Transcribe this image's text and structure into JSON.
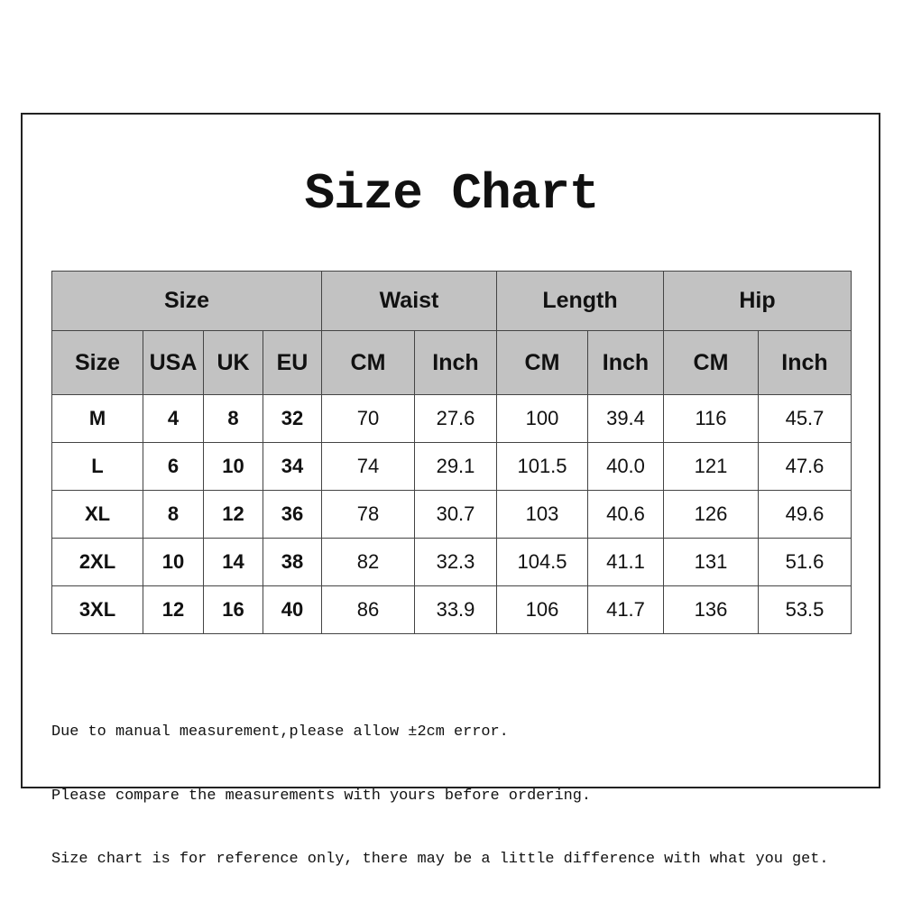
{
  "title": "Size Chart",
  "table": {
    "groups": [
      "Size",
      "Waist",
      "Length",
      "Hip"
    ],
    "subheaders": [
      "Size",
      "USA",
      "UK",
      "EU",
      "CM",
      "Inch",
      "CM",
      "Inch",
      "CM",
      "Inch"
    ],
    "rows": [
      [
        "M",
        "4",
        "8",
        "32",
        "70",
        "27.6",
        "100",
        "39.4",
        "116",
        "45.7"
      ],
      [
        "L",
        "6",
        "10",
        "34",
        "74",
        "29.1",
        "101.5",
        "40.0",
        "121",
        "47.6"
      ],
      [
        "XL",
        "8",
        "12",
        "36",
        "78",
        "30.7",
        "103",
        "40.6",
        "126",
        "49.6"
      ],
      [
        "2XL",
        "10",
        "14",
        "38",
        "82",
        "32.3",
        "104.5",
        "41.1",
        "131",
        "51.6"
      ],
      [
        "3XL",
        "12",
        "16",
        "40",
        "86",
        "33.9",
        "106",
        "41.7",
        "136",
        "53.5"
      ]
    ]
  },
  "notes": [
    "Due to manual measurement,please allow ±2cm error.",
    "Please compare the measurements with yours before ordering.",
    "Size chart is for reference only, there may be a little difference with what you get."
  ]
}
